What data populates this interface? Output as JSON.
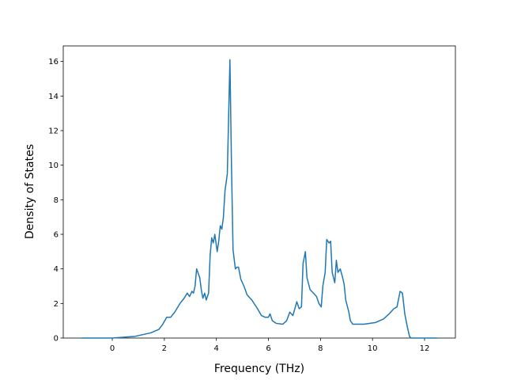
{
  "chart_data": {
    "type": "line",
    "xlabel": "Frequency (THz)",
    "ylabel": "Density of States",
    "x": [
      -1.18,
      0,
      0.88,
      1.48,
      1.79,
      1.94,
      2.09,
      2.24,
      2.4,
      2.6,
      2.76,
      2.88,
      2.97,
      3.06,
      3.12,
      3.18,
      3.24,
      3.36,
      3.42,
      3.48,
      3.55,
      3.61,
      3.7,
      3.76,
      3.82,
      3.88,
      3.94,
      4.03,
      4.09,
      4.15,
      4.21,
      4.27,
      4.33,
      4.42,
      4.52,
      4.58,
      4.64,
      4.73,
      4.79,
      4.85,
      4.94,
      5.06,
      5.18,
      5.36,
      5.58,
      5.73,
      5.88,
      6.0,
      6.06,
      6.15,
      6.3,
      6.55,
      6.7,
      6.82,
      6.94,
      7.09,
      7.18,
      7.27,
      7.33,
      7.42,
      7.48,
      7.6,
      7.73,
      7.85,
      7.94,
      8.03,
      8.09,
      8.18,
      8.24,
      8.33,
      8.39,
      8.45,
      8.55,
      8.61,
      8.67,
      8.76,
      8.85,
      8.91,
      8.97,
      9.09,
      9.15,
      9.24,
      9.67,
      10.12,
      10.42,
      10.64,
      10.82,
      10.94,
      11.06,
      11.15,
      11.24,
      11.33,
      11.42,
      11.48,
      12.48
    ],
    "series": [
      {
        "name": "DOS",
        "color": "#1f77b4",
        "values": [
          0,
          0,
          0.1,
          0.3,
          0.5,
          0.8,
          1.2,
          1.2,
          1.5,
          2.0,
          2.3,
          2.6,
          2.4,
          2.7,
          2.6,
          3.0,
          4.0,
          3.5,
          2.8,
          2.3,
          2.6,
          2.2,
          2.6,
          4.8,
          5.8,
          5.5,
          6.0,
          5.0,
          5.6,
          6.5,
          6.3,
          7.0,
          8.5,
          9.5,
          16.1,
          10,
          5.1,
          4.0,
          4.1,
          4.1,
          3.4,
          3.0,
          2.5,
          2.2,
          1.7,
          1.3,
          1.2,
          1.2,
          1.4,
          1.0,
          0.85,
          0.8,
          1.0,
          1.5,
          1.3,
          2.1,
          1.7,
          1.8,
          4.3,
          5.0,
          3.5,
          2.8,
          2.6,
          2.4,
          2.0,
          1.8,
          3.0,
          3.8,
          5.7,
          5.5,
          5.6,
          3.8,
          3.2,
          4.5,
          3.8,
          4.0,
          3.5,
          3.1,
          2.2,
          1.5,
          1.0,
          0.8,
          0.8,
          0.9,
          1.1,
          1.4,
          1.7,
          1.8,
          2.7,
          2.6,
          1.4,
          0.7,
          0.1,
          0,
          0
        ]
      }
    ],
    "xlim": [
      -1.885,
      13.185
    ],
    "xticks": [
      0,
      2,
      4,
      6,
      8,
      10,
      12
    ],
    "ylim": [
      0,
      16.9
    ],
    "yticks": [
      0,
      2,
      4,
      6,
      8,
      10,
      12,
      14,
      16
    ]
  }
}
